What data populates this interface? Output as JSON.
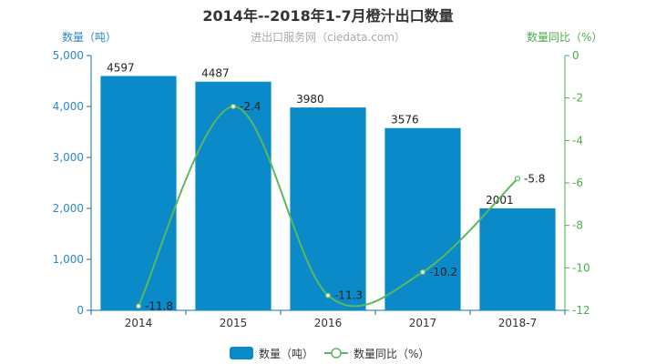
{
  "chart_data": {
    "type": "bar",
    "title": "2014年--2018年1-7月橙汁出口数量",
    "subtitle": "进出口服务网（ciedata.com）",
    "categories": [
      "2014",
      "2015",
      "2016",
      "2017",
      "2018-7"
    ],
    "series": [
      {
        "name": "数量（吨）",
        "type": "bar",
        "axis": "left",
        "values": [
          4597,
          4487,
          3980,
          3576,
          2001
        ]
      },
      {
        "name": "数量同比（%）",
        "type": "line",
        "axis": "right",
        "smooth": true,
        "values": [
          -11.8,
          -2.4,
          -11.3,
          -10.2,
          -5.8
        ]
      }
    ],
    "y_left": {
      "label": "数量（吨）",
      "range": [
        0,
        5000
      ],
      "ticks": [
        "0",
        "1,000",
        "2,000",
        "3,000",
        "4,000",
        "5,000"
      ]
    },
    "y_right": {
      "label": "数量同比（%）",
      "range": [
        -12,
        0
      ],
      "ticks": [
        "-12",
        "-10",
        "-8",
        "-6",
        "-4",
        "-2",
        "0"
      ]
    },
    "bar_labels": [
      "4597",
      "4487",
      "3980",
      "3576",
      "2001"
    ],
    "line_labels": [
      "-11.8",
      "-2.4",
      "-11.3",
      "-10.2",
      "-5.8"
    ],
    "legend": {
      "position": "bottom",
      "items": [
        "数量（吨）",
        "数量同比（%）"
      ]
    },
    "colors": {
      "bar": "#0a8ac9",
      "line": "#5cb85c",
      "left_axis": "#2e8ac9",
      "right_axis": "#4cae4c",
      "axis_line": "#1a6fa8"
    },
    "grid": false
  }
}
